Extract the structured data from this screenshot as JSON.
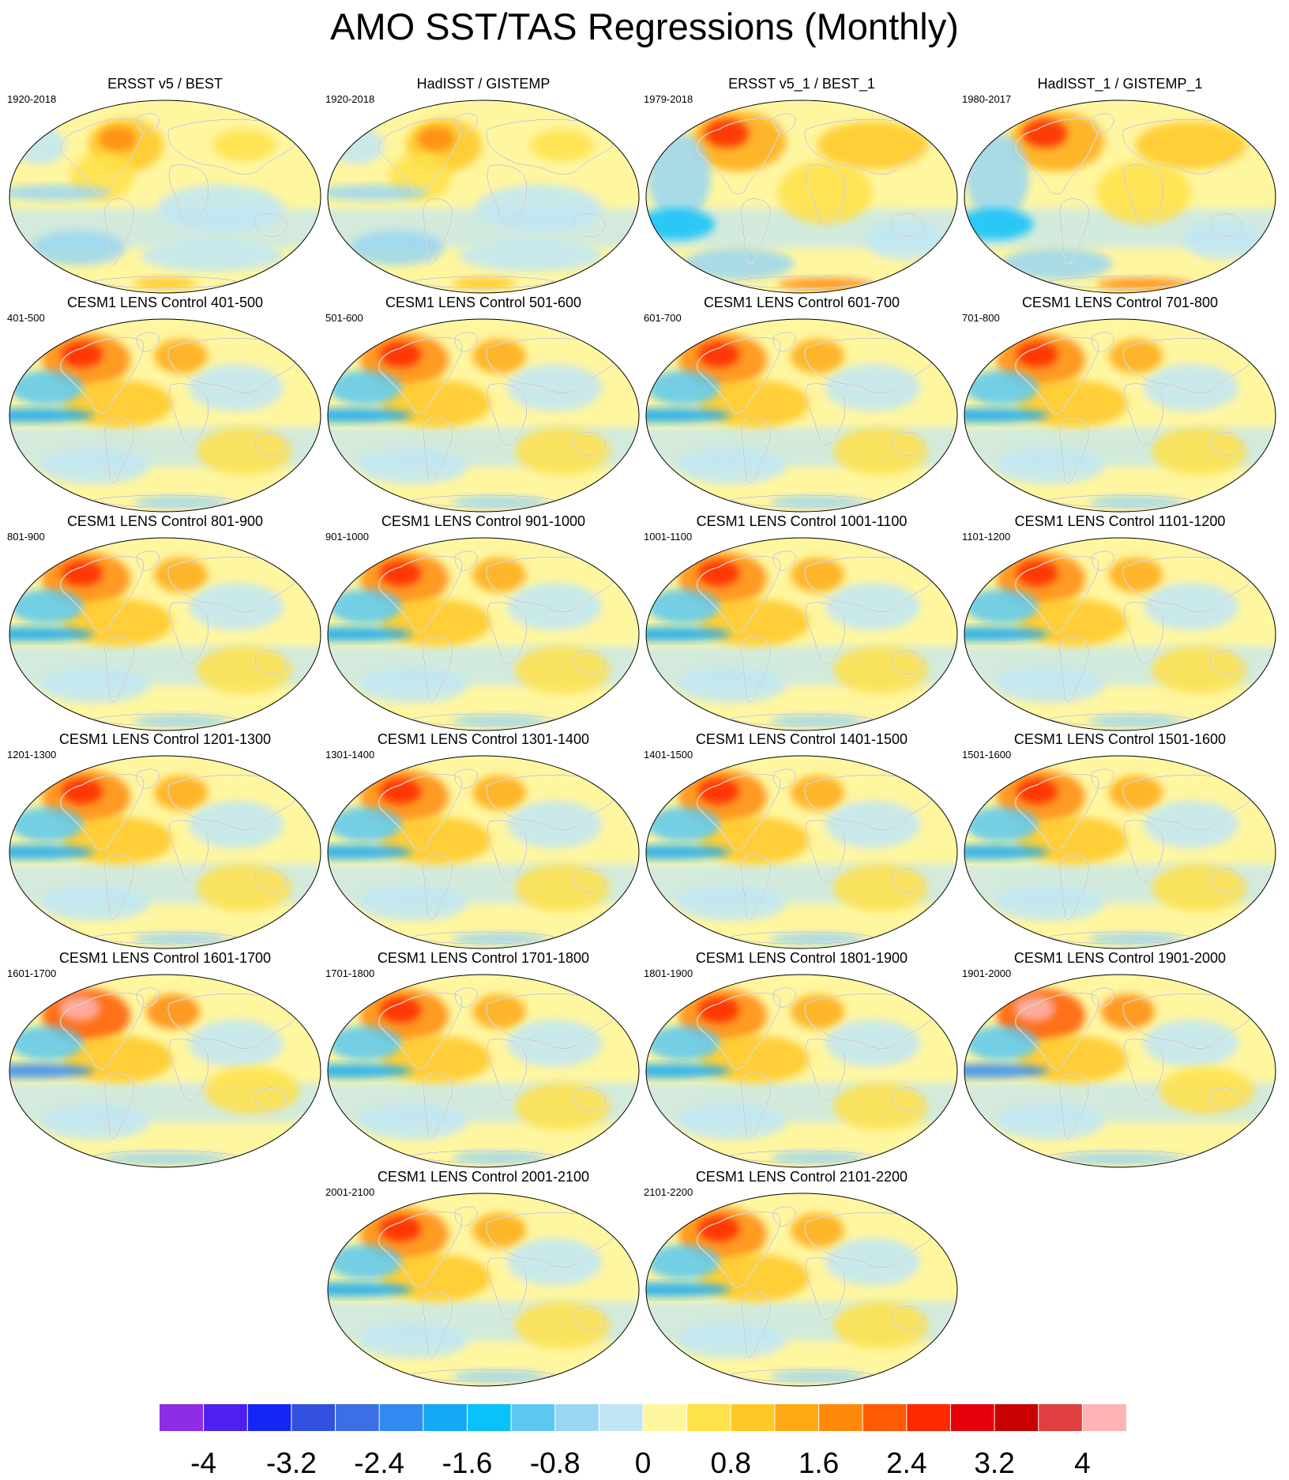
{
  "title": "AMO SST/TAS Regressions (Monthly)",
  "panels": [
    {
      "title": "ERSST v5 / BEST",
      "period": "1920-2018",
      "variant": "obs"
    },
    {
      "title": "HadISST / GISTEMP",
      "period": "1920-2018",
      "variant": "obs"
    },
    {
      "title": "ERSST v5_1 / BEST_1",
      "period": "1979-2018",
      "variant": "obs_recent"
    },
    {
      "title": "HadISST_1 / GISTEMP_1",
      "period": "1980-2017",
      "variant": "obs_recent"
    },
    {
      "title": "CESM1 LENS Control 401-500",
      "period": "401-500",
      "variant": "model"
    },
    {
      "title": "CESM1 LENS Control 501-600",
      "period": "501-600",
      "variant": "model"
    },
    {
      "title": "CESM1 LENS Control 601-700",
      "period": "601-700",
      "variant": "model"
    },
    {
      "title": "CESM1 LENS Control 701-800",
      "period": "701-800",
      "variant": "model"
    },
    {
      "title": "CESM1 LENS Control 801-900",
      "period": "801-900",
      "variant": "model"
    },
    {
      "title": "CESM1 LENS Control 901-1000",
      "period": "901-1000",
      "variant": "model"
    },
    {
      "title": "CESM1 LENS Control 1001-1100",
      "period": "1001-1100",
      "variant": "model"
    },
    {
      "title": "CESM1 LENS Control 1101-1200",
      "period": "1101-1200",
      "variant": "model"
    },
    {
      "title": "CESM1 LENS Control 1201-1300",
      "period": "1201-1300",
      "variant": "model"
    },
    {
      "title": "CESM1 LENS Control 1301-1400",
      "period": "1301-1400",
      "variant": "model"
    },
    {
      "title": "CESM1 LENS Control 1401-1500",
      "period": "1401-1500",
      "variant": "model"
    },
    {
      "title": "CESM1 LENS Control 1501-1600",
      "period": "1501-1600",
      "variant": "model"
    },
    {
      "title": "CESM1 LENS Control 1601-1700",
      "period": "1601-1700",
      "variant": "model_strong"
    },
    {
      "title": "CESM1 LENS Control 1701-1800",
      "period": "1701-1800",
      "variant": "model"
    },
    {
      "title": "CESM1 LENS Control 1801-1900",
      "period": "1801-1900",
      "variant": "model"
    },
    {
      "title": "CESM1 LENS Control 1901-2000",
      "period": "1901-2000",
      "variant": "model_strong"
    },
    {
      "title": "CESM1 LENS Control 2001-2100",
      "period": "2001-2100",
      "variant": "model"
    },
    {
      "title": "CESM1 LENS Control 2101-2200",
      "period": "2101-2200",
      "variant": "model"
    }
  ],
  "colorbar": {
    "colors": [
      "#8e2ce6",
      "#4d1ff0",
      "#1426f5",
      "#3250e0",
      "#3c6fe6",
      "#3189f2",
      "#14a8f5",
      "#0ac2fa",
      "#5cc8f0",
      "#9ad6f2",
      "#c0e6f6",
      "#fff6a0",
      "#ffe14a",
      "#ffc825",
      "#ffaa14",
      "#ff8a0a",
      "#ff5a05",
      "#ff2800",
      "#e6000a",
      "#c80000",
      "#e04040",
      "#ffb4b4"
    ],
    "tick_labels": [
      "-4",
      "-3.2",
      "-2.4",
      "-1.6",
      "-0.8",
      "0",
      "0.8",
      "1.6",
      "2.4",
      "3.2",
      "4"
    ],
    "tick_values": [
      -4,
      -3.2,
      -2.4,
      -1.6,
      -0.8,
      0,
      0.8,
      1.6,
      2.4,
      3.2,
      4
    ],
    "range": [
      -4.4,
      4.4
    ],
    "levels_per_tick": 2
  }
}
